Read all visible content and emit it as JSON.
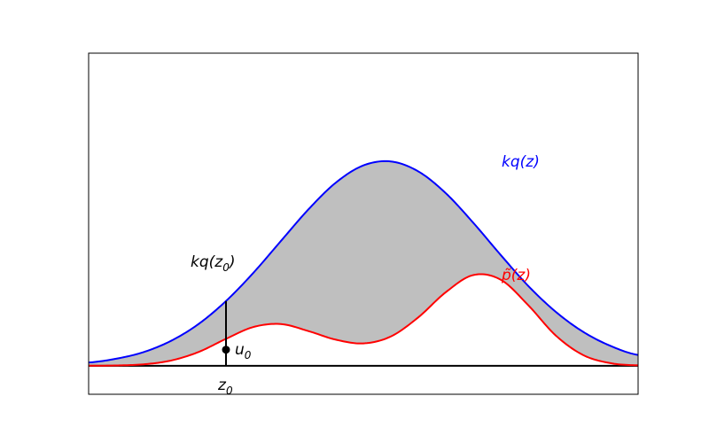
{
  "chart_data": {
    "type": "area",
    "title": "",
    "xlabel": "",
    "ylabel": "",
    "xlim": [
      -5,
      5
    ],
    "ylim": [
      -0.3,
      3.3
    ],
    "grid": false,
    "ticks": false,
    "series": [
      {
        "name": "kq(z)",
        "color": "#0000ff",
        "x": [
          -5,
          -4.5,
          -4,
          -3.5,
          -3,
          -2.5,
          -2,
          -1.5,
          -1,
          -0.5,
          0,
          0.5,
          1,
          1.5,
          2,
          2.5,
          3,
          3.5,
          4,
          4.5,
          5
        ],
        "y": [
          0.035,
          0.075,
          0.145,
          0.264,
          0.441,
          0.684,
          0.983,
          1.318,
          1.651,
          1.934,
          2.115,
          2.157,
          2.052,
          1.822,
          1.51,
          1.17,
          0.844,
          0.571,
          0.359,
          0.21,
          0.115
        ]
      },
      {
        "name": "p̃(z)",
        "color": "#ff0000",
        "x": [
          -5,
          -4.5,
          -4,
          -3.5,
          -3,
          -2.5,
          -2,
          -1.5,
          -1,
          -0.5,
          0,
          0.5,
          1,
          1.5,
          2,
          2.5,
          3,
          3.5,
          4,
          4.5,
          5
        ],
        "y": [
          0.001,
          0.004,
          0.016,
          0.056,
          0.146,
          0.285,
          0.41,
          0.441,
          0.367,
          0.276,
          0.237,
          0.31,
          0.512,
          0.777,
          0.958,
          0.909,
          0.64,
          0.321,
          0.114,
          0.028,
          0.005
        ]
      }
    ],
    "fill_between": {
      "between": [
        "kq(z)",
        "p̃(z)"
      ],
      "color": "#bfbfbf"
    },
    "annotations": {
      "z0": {
        "x": -2.5,
        "label_base": "z",
        "label_sub": "0"
      },
      "u0": {
        "x": -2.5,
        "y": 0.17,
        "label_base": "u",
        "label_sub": "0"
      },
      "kqz0_label": {
        "text_pre": "kq(z",
        "text_sub": "0",
        "text_post": ")"
      },
      "kq_label": "kq(z)",
      "p_label": "p̃(z)"
    }
  }
}
